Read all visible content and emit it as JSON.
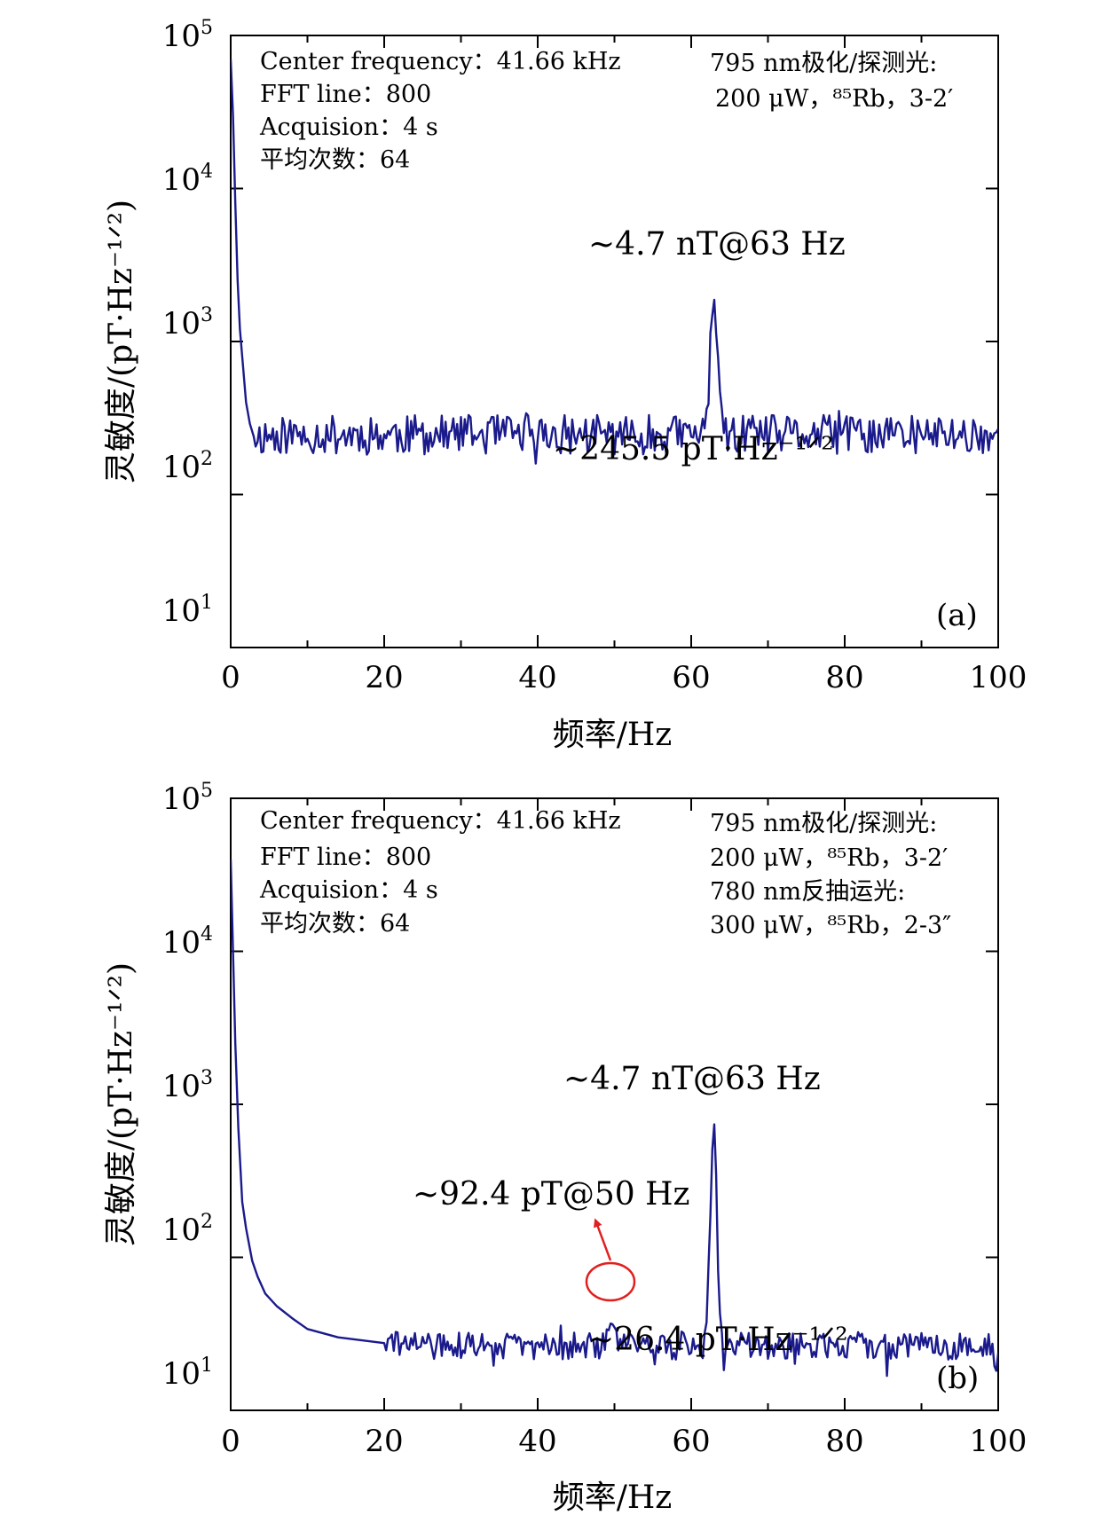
{
  "chart_data": [
    {
      "type": "line",
      "panel_label": "(a)",
      "xlabel": "频率/Hz",
      "ylabel": "灵敏度/(pT·Hz⁻¹ᐟ²)",
      "xlim": [
        0,
        100
      ],
      "ylim": [
        10,
        100000
      ],
      "yscale": "log",
      "xticks": [
        0,
        20,
        40,
        60,
        80,
        100
      ],
      "xtick_labels": [
        "0",
        "20",
        "40",
        "60",
        "80",
        "100"
      ],
      "yticks": [
        10,
        100,
        1000,
        10000,
        100000
      ],
      "ytick_labels": [
        {
          "base": "10",
          "exp": "1"
        },
        {
          "base": "10",
          "exp": "2"
        },
        {
          "base": "10",
          "exp": "3"
        },
        {
          "base": "10",
          "exp": "4"
        },
        {
          "base": "10",
          "exp": "5"
        }
      ],
      "line_color": "#1a1a8c",
      "info_left": [
        "Center frequency：41.66 kHz",
        "FFT line：800",
        "Acquision：4 s",
        "平均次数：64"
      ],
      "info_right": [
        "795 nm极化/探测光:",
        "200 μW，⁸⁵Rb，3-2′"
      ],
      "annotations": [
        "~4.7 nT@63 Hz",
        "~245.5 pT·Hz⁻¹ᐟ²"
      ],
      "noise_floor": 245.5,
      "noise_amp": 0.13,
      "series": [
        {
          "name": "sensitivity",
          "points": [
            [
              0,
              70000
            ],
            [
              0.3,
              30000
            ],
            [
              0.6,
              8000
            ],
            [
              0.9,
              2500
            ],
            [
              1.2,
              1200
            ],
            [
              1.6,
              700
            ],
            [
              2.0,
              400
            ],
            [
              2.5,
              290
            ],
            [
              3.0,
              240
            ]
          ],
          "peaks": [
            {
              "x": 62.9,
              "y": 2200,
              "w": 0.45
            }
          ]
        }
      ]
    },
    {
      "type": "line",
      "panel_label": "(b)",
      "xlabel": "频率/Hz",
      "ylabel": "灵敏度/(pT·Hz⁻¹ᐟ²)",
      "xlim": [
        0,
        100
      ],
      "ylim": [
        10,
        100000
      ],
      "yscale": "log",
      "xticks": [
        0,
        20,
        40,
        60,
        80,
        100
      ],
      "xtick_labels": [
        "0",
        "20",
        "40",
        "60",
        "80",
        "100"
      ],
      "yticks": [
        10,
        100,
        1000,
        10000,
        100000
      ],
      "ytick_labels": [
        {
          "base": "10",
          "exp": "1"
        },
        {
          "base": "10",
          "exp": "2"
        },
        {
          "base": "10",
          "exp": "3"
        },
        {
          "base": "10",
          "exp": "4"
        },
        {
          "base": "10",
          "exp": "5"
        }
      ],
      "line_color": "#1a1a8c",
      "info_left": [
        "Center frequency：41.66 kHz",
        "FFT line：800",
        "Acquision：4 s",
        "平均次数：64"
      ],
      "info_right": [
        "795 nm极化/探测光:",
        "200 μW，⁸⁵Rb，3-2′",
        "780 nm反抽运光:",
        "300 μW，⁸⁵Rb，2-3″"
      ],
      "annotations": [
        "~4.7 nT@63 Hz",
        "~92.4 pT@50 Hz",
        "~26.4 pT·Hz⁻¹ᐟ²"
      ],
      "noise_floor": 26.4,
      "noise_amp": 0.09,
      "series": [
        {
          "name": "sensitivity",
          "points": [
            [
              0,
              40000
            ],
            [
              0.3,
              10000
            ],
            [
              0.6,
              2500
            ],
            [
              1.0,
              700
            ],
            [
              1.5,
              230
            ],
            [
              2.0,
              155
            ],
            [
              2.8,
              95
            ],
            [
              3.5,
              75
            ],
            [
              4.5,
              58
            ],
            [
              6.0,
              48
            ],
            [
              8.0,
              40
            ],
            [
              10.0,
              34
            ],
            [
              14.0,
              30
            ],
            [
              20.0,
              27.5
            ]
          ],
          "peaks": [
            {
              "x": 62.9,
              "y": 760,
              "w": 0.42
            },
            {
              "x": 49.7,
              "y": 38,
              "w": 0.3
            }
          ]
        }
      ]
    }
  ]
}
